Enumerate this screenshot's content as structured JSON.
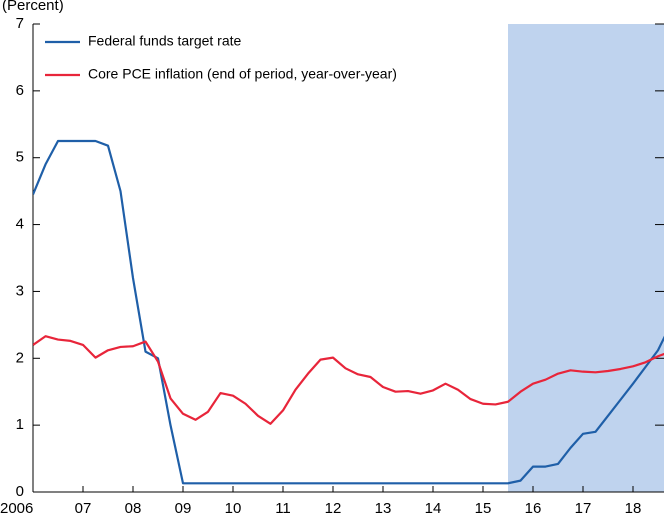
{
  "chart_data": {
    "type": "line",
    "y_label": "(Percent)",
    "x": [
      2006,
      2006.25,
      2006.5,
      2006.75,
      2007,
      2007.25,
      2007.5,
      2007.75,
      2008,
      2008.25,
      2008.5,
      2008.75,
      2009,
      2009.25,
      2009.5,
      2009.75,
      2010,
      2010.25,
      2010.5,
      2010.75,
      2011,
      2011.25,
      2011.5,
      2011.75,
      2012,
      2012.25,
      2012.5,
      2012.75,
      2013,
      2013.25,
      2013.5,
      2013.75,
      2014,
      2014.25,
      2014.5,
      2014.75,
      2015,
      2015.25,
      2015.5,
      2015.75,
      2016,
      2016.25,
      2016.5,
      2016.75,
      2017,
      2017.25,
      2017.5,
      2017.75,
      2018,
      2018.25,
      2018.5,
      2018.75
    ],
    "series": [
      {
        "name": "Federal funds target rate",
        "color": "#1f5fa8",
        "values": [
          4.45,
          4.9,
          5.25,
          5.25,
          5.25,
          5.25,
          5.18,
          4.5,
          3.2,
          2.1,
          2.0,
          1.0,
          0.13,
          0.13,
          0.13,
          0.13,
          0.13,
          0.13,
          0.13,
          0.13,
          0.13,
          0.13,
          0.13,
          0.13,
          0.13,
          0.13,
          0.13,
          0.13,
          0.13,
          0.13,
          0.13,
          0.13,
          0.13,
          0.13,
          0.13,
          0.13,
          0.13,
          0.13,
          0.13,
          0.17,
          0.38,
          0.38,
          0.42,
          0.66,
          0.87,
          0.9,
          1.14,
          1.38,
          1.62,
          1.87,
          2.12,
          2.5
        ]
      },
      {
        "name": "Core PCE inflation (end of period, year-over-year)",
        "color": "#e8253a",
        "values": [
          2.2,
          2.33,
          2.28,
          2.26,
          2.2,
          2.01,
          2.12,
          2.17,
          2.18,
          2.25,
          1.95,
          1.4,
          1.17,
          1.08,
          1.2,
          1.48,
          1.44,
          1.32,
          1.14,
          1.02,
          1.22,
          1.53,
          1.77,
          1.98,
          2.01,
          1.85,
          1.76,
          1.72,
          1.57,
          1.5,
          1.51,
          1.47,
          1.52,
          1.62,
          1.53,
          1.39,
          1.32,
          1.31,
          1.35,
          1.5,
          1.62,
          1.68,
          1.77,
          1.82,
          1.8,
          1.79,
          1.81,
          1.84,
          1.88,
          1.94,
          2.03,
          2.1
        ]
      }
    ],
    "xlim": [
      2006,
      2018.62
    ],
    "xticks": [
      2006,
      {
        "value": 2007,
        "label": "07"
      },
      {
        "value": 2008,
        "label": "08"
      },
      {
        "value": 2009,
        "label": "09"
      },
      {
        "value": 2010,
        "label": "10"
      },
      {
        "value": 2011,
        "label": "11"
      },
      {
        "value": 2012,
        "label": "12"
      },
      {
        "value": 2013,
        "label": "13"
      },
      {
        "value": 2014,
        "label": "14"
      },
      {
        "value": 2015,
        "label": "15"
      },
      {
        "value": 2016,
        "label": "16"
      },
      {
        "value": 2017,
        "label": "17"
      },
      {
        "value": 2018,
        "label": "18"
      }
    ],
    "ylim": [
      0,
      7
    ],
    "yticks": [
      0,
      1,
      2,
      3,
      4,
      5,
      6,
      7
    ],
    "shaded_from": 2015.5,
    "shade_color": "#bfd3ee",
    "legend": "top-left"
  }
}
